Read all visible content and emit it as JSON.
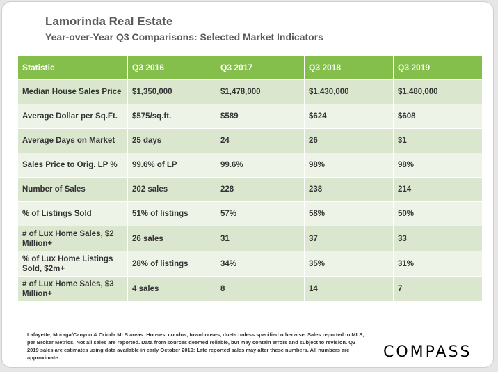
{
  "header": {
    "title": "Lamorinda Real Estate",
    "subtitle": "Year-over-Year Q3 Comparisons: Selected Market Indicators"
  },
  "table": {
    "columns": [
      "Statistic",
      "Q3 2016",
      "Q3 2017",
      "Q3 2018",
      "Q3 2019"
    ],
    "rows": [
      {
        "label": "Median House Sales Price",
        "values": [
          "$1,350,000",
          "$1,478,000",
          "$1,430,000",
          "$1,480,000"
        ]
      },
      {
        "label": "Average Dollar per Sq.Ft.",
        "values": [
          "$575/sq.ft.",
          "$589",
          "$624",
          "$608"
        ]
      },
      {
        "label": "Average Days on Market",
        "values": [
          "25 days",
          "24",
          "26",
          "31"
        ]
      },
      {
        "label": "Sales Price to Orig. LP %",
        "values": [
          "99.6% of LP",
          "99.6%",
          "98%",
          "98%"
        ]
      },
      {
        "label": "Number of Sales",
        "values": [
          "202 sales",
          "228",
          "238",
          "214"
        ]
      },
      {
        "label": "% of Listings Sold",
        "values": [
          "51% of listings",
          "57%",
          "58%",
          "50%"
        ]
      },
      {
        "label": "# of Lux Home Sales, $2 Million+",
        "values": [
          "26 sales",
          "31",
          "37",
          "33"
        ]
      },
      {
        "label": "% of Lux Home Listings Sold, $2m+",
        "values": [
          "28% of listings",
          "34%",
          "35%",
          "31%"
        ]
      },
      {
        "label": "# of Lux Home Sales, $3 Million+",
        "values": [
          "4 sales",
          "8",
          "14",
          "7"
        ]
      }
    ]
  },
  "footer": {
    "note": "Lafayette, Moraga/Canyon & Orinda MLS areas: Houses, condos, townhouses, duets unless specified otherwise. Sales reported to MLS, per Broker Metrics. Not all sales are reported. Data from sources deemed reliable, but may contain errors and subject to revision. Q3 2019 sales are estimates using data available in early October 2019: Late reported sales may alter these numbers. All numbers are approximate.",
    "logo": "COMPASS"
  },
  "colors": {
    "header_green": "#83bf4a",
    "row_dark": "#dbe6cf",
    "row_light": "#eef3e8"
  }
}
